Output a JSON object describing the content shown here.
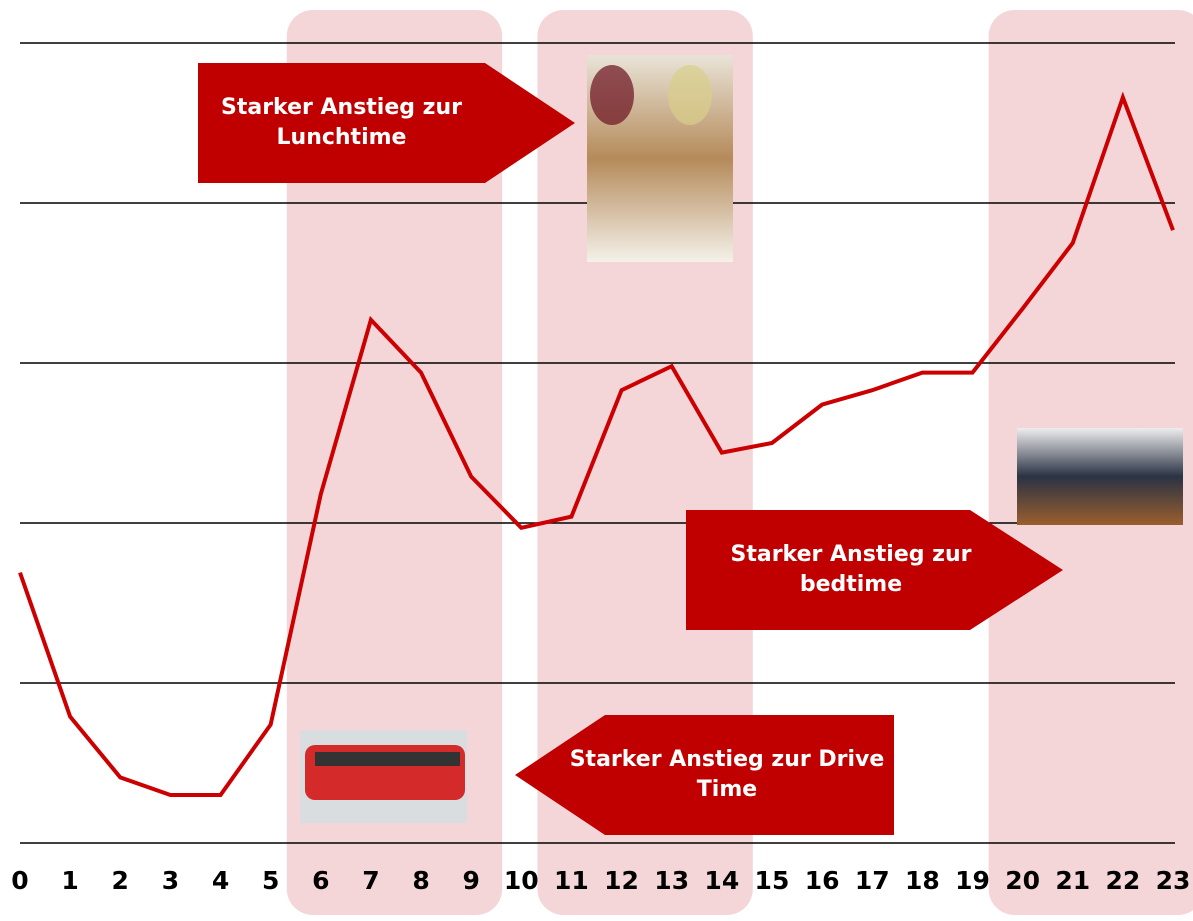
{
  "chart_data": {
    "type": "line",
    "categories": [
      "0",
      "1",
      "2",
      "3",
      "4",
      "5",
      "6",
      "7",
      "8",
      "9",
      "10",
      "11",
      "12",
      "13",
      "14",
      "15",
      "16",
      "17",
      "18",
      "19",
      "20",
      "21",
      "22",
      "23"
    ],
    "series": [
      {
        "color": "#cc0000",
        "values": [
          1.69,
          0.79,
          0.41,
          0.3,
          0.3,
          0.74,
          2.18,
          3.27,
          2.94,
          2.29,
          1.97,
          2.04,
          2.83,
          2.98,
          2.44,
          2.5,
          2.74,
          2.83,
          2.94,
          2.94,
          3.34,
          3.75,
          4.66,
          3.83
        ]
      }
    ],
    "ylim": [
      0,
      5
    ],
    "yticks": [
      0,
      1,
      2,
      3,
      4,
      5
    ],
    "grid": true,
    "highlight_ranges": [
      [
        6,
        9
      ],
      [
        11,
        14
      ],
      [
        20,
        23
      ]
    ],
    "highlight_color": "#f5d6d8",
    "annotations": [
      {
        "text": "Starker Anstieg zur Lunchtime",
        "direction": "right"
      },
      {
        "text": "Starker Anstieg zur bedtime",
        "direction": "right"
      },
      {
        "text": "Starker Anstieg zur Drive Time",
        "direction": "left"
      }
    ],
    "annotation_color": "#c00000"
  }
}
